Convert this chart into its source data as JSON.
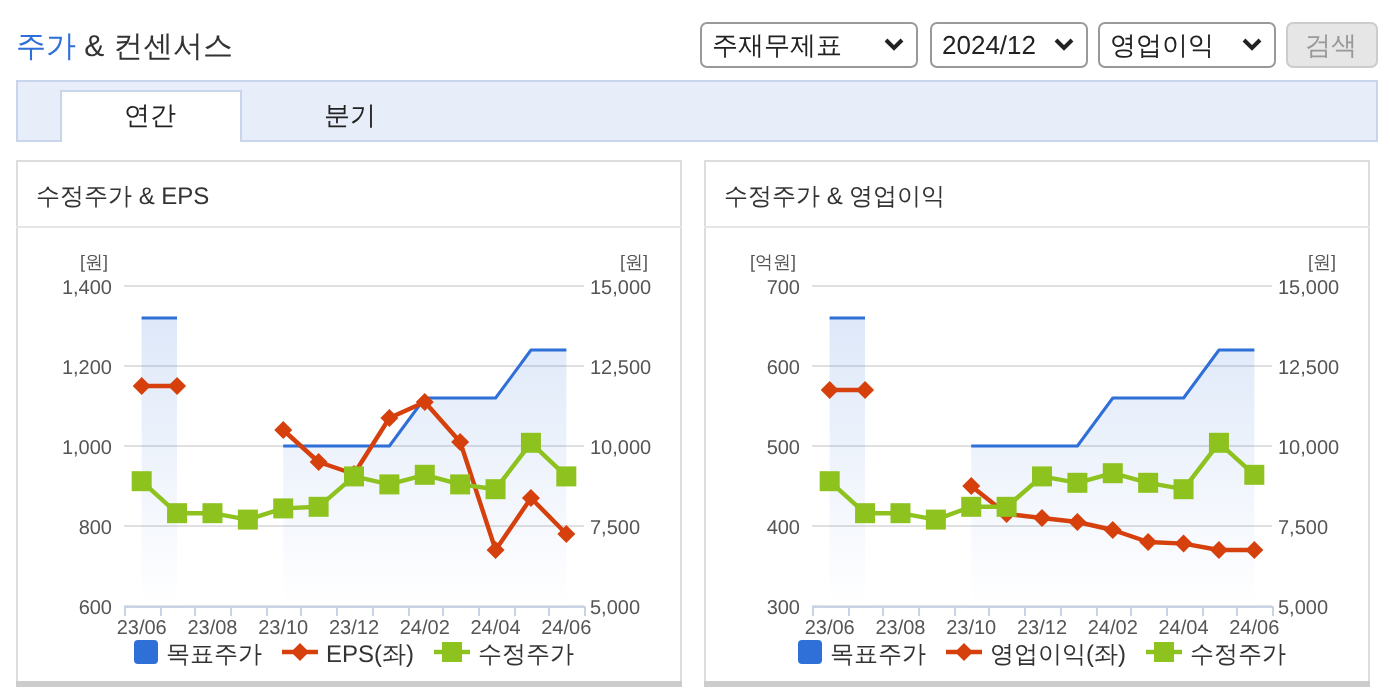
{
  "chart_data": [
    {
      "type": "other",
      "title": "주가 & 컨센서스",
      "annotations": [
        "주재무제표",
        "2024/12",
        "영업이익",
        "검색",
        "연간",
        "분기"
      ]
    },
    {
      "type": "line",
      "title": "수정주가 & EPS",
      "ylabel": "[원]",
      "y2label": "[원]",
      "categories": [
        "23/06",
        null,
        "23/08",
        null,
        "23/10",
        null,
        "23/12",
        null,
        "24/02",
        null,
        "24/04",
        null,
        "24/06"
      ],
      "ylim": [
        600,
        1400
      ],
      "yticks": [
        600,
        800,
        {
          "value": 1000,
          "label": "1,000"
        },
        {
          "value": 1200,
          "label": "1,200"
        },
        {
          "value": 1400,
          "label": "1,400"
        }
      ],
      "y2lim": [
        5000,
        15000
      ],
      "y2ticks": [
        {
          "value": 5000,
          "label": "5,000"
        },
        {
          "value": 7500,
          "label": "7,500"
        },
        {
          "value": 10000,
          "label": "10,000"
        },
        {
          "value": 12500,
          "label": "12,500"
        },
        {
          "value": 15000,
          "label": "15,000"
        }
      ],
      "grid": "y",
      "legend": "bottom",
      "series": [
        {
          "name": "목표주가",
          "type": "area",
          "axis": "y2",
          "color": "#2f6fd8",
          "values": [
            14000,
            14000,
            null,
            null,
            10000,
            10000,
            10000,
            10000,
            11500,
            11500,
            11500,
            13000,
            13000
          ]
        },
        {
          "name": "EPS(좌)",
          "type": "line",
          "marker": "diamond",
          "color": "#d5400d",
          "values": [
            1150,
            1150,
            null,
            null,
            1040,
            960,
            930,
            1070,
            1110,
            1010,
            740,
            870,
            780
          ]
        },
        {
          "name": "수정주가",
          "type": "line",
          "axis": "y2",
          "marker": "square",
          "color": "#8dc21f",
          "values": [
            8900,
            7900,
            7900,
            7700,
            8050,
            8100,
            9050,
            8800,
            9100,
            8800,
            8650,
            10100,
            9050
          ]
        }
      ]
    },
    {
      "type": "line",
      "title": "수정주가 & 영업이익",
      "ylabel": "[억원]",
      "y2label": "[원]",
      "categories": [
        "23/06",
        null,
        "23/08",
        null,
        "23/10",
        null,
        "23/12",
        null,
        "24/02",
        null,
        "24/04",
        null,
        "24/06"
      ],
      "ylim": [
        300,
        700
      ],
      "yticks": [
        300,
        400,
        500,
        600,
        700
      ],
      "y2lim": [
        5000,
        15000
      ],
      "y2ticks": [
        {
          "value": 5000,
          "label": "5,000"
        },
        {
          "value": 7500,
          "label": "7,500"
        },
        {
          "value": 10000,
          "label": "10,000"
        },
        {
          "value": 12500,
          "label": "12,500"
        },
        {
          "value": 15000,
          "label": "15,000"
        }
      ],
      "grid": "y",
      "legend": "bottom",
      "series": [
        {
          "name": "목표주가",
          "type": "area",
          "axis": "y2",
          "color": "#2f6fd8",
          "values": [
            14000,
            14000,
            null,
            null,
            10000,
            10000,
            10000,
            10000,
            11500,
            11500,
            11500,
            13000,
            13000
          ]
        },
        {
          "name": "영업이익(좌)",
          "type": "line",
          "marker": "diamond",
          "color": "#d5400d",
          "values": [
            570,
            570,
            null,
            null,
            450,
            415,
            410,
            405,
            395,
            380,
            378,
            370,
            370
          ]
        },
        {
          "name": "수정주가",
          "type": "line",
          "axis": "y2",
          "marker": "square",
          "color": "#8dc21f",
          "values": [
            8900,
            7900,
            7900,
            7700,
            8100,
            8100,
            9050,
            8850,
            9150,
            8850,
            8650,
            10100,
            9100
          ]
        }
      ]
    }
  ]
}
